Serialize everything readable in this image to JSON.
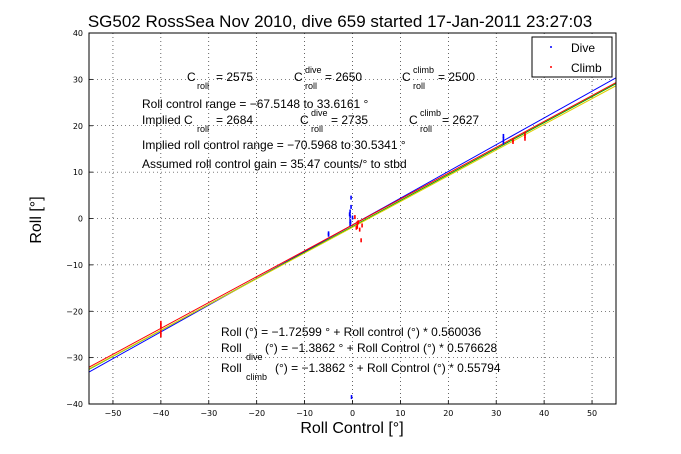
{
  "chart_data": {
    "type": "scatter",
    "title": "SG502 RossSea Nov 2010, dive 659 started 17-Jan-2011 23:27:03",
    "xlabel": "Roll Control [°]",
    "ylabel": "Roll [°]",
    "xlim": [
      -55,
      55
    ],
    "ylim": [
      -40,
      40
    ],
    "xticks": [
      "−50",
      "−40",
      "−30",
      "−20",
      "−10",
      "0",
      "10",
      "20",
      "30",
      "40",
      "50"
    ],
    "xtick_values": [
      -50,
      -40,
      -30,
      -20,
      -10,
      0,
      10,
      20,
      30,
      40,
      50
    ],
    "yticks": [
      "40",
      "30",
      "20",
      "10",
      "0",
      "−10",
      "−20",
      "−30",
      "−40"
    ],
    "ytick_values": [
      40,
      30,
      20,
      10,
      0,
      -10,
      -20,
      -30,
      -40
    ],
    "grid": true,
    "legend": {
      "placement": "top-right",
      "entries": [
        {
          "label": "Dive",
          "color": "#0000ff"
        },
        {
          "label": "Climb",
          "color": "#ff0000"
        }
      ]
    },
    "series": [
      {
        "name": "Dive",
        "color": "#0000ff",
        "points": [
          [
            31.5,
            17.2
          ],
          [
            31.5,
            16.4
          ],
          [
            31.5,
            17.8
          ],
          [
            -5,
            -3.5
          ],
          [
            -5,
            -3.2
          ],
          [
            -0.5,
            0.5
          ],
          [
            -0.5,
            -0.5
          ],
          [
            -0.5,
            1.5
          ],
          [
            -0.5,
            -1.2
          ],
          [
            -0.3,
            4.5
          ],
          [
            -0.3,
            2.5
          ],
          [
            0,
            0.2
          ],
          [
            -0.4,
            -0.8
          ],
          [
            -0.2,
            -38.5
          ],
          [
            -0.6,
            0.9
          ]
        ]
      },
      {
        "name": "Climb",
        "color": "#ff0000",
        "points": [
          [
            -40,
            -22.5
          ],
          [
            -40,
            -23.5
          ],
          [
            -40,
            -24.5
          ],
          [
            -40,
            -25.2
          ],
          [
            -40,
            -23
          ],
          [
            36,
            17.2
          ],
          [
            36,
            18.2
          ],
          [
            36,
            17.8
          ],
          [
            33.5,
            16.5
          ],
          [
            33.5,
            16.9
          ],
          [
            1,
            -1
          ],
          [
            1,
            -1.8
          ],
          [
            1.5,
            -2.4
          ],
          [
            1.8,
            -4.7
          ],
          [
            0.5,
            0.3
          ],
          [
            1.2,
            -0.8
          ],
          [
            2,
            -1.5
          ],
          [
            0.8,
            -2
          ]
        ]
      }
    ],
    "fit_lines": [
      {
        "color": "#0000ff",
        "intercept": -1.3862,
        "slope": 0.576628
      },
      {
        "color": "#ff0000",
        "intercept": -1.3862,
        "slope": 0.55794
      },
      {
        "color": "#00a000",
        "intercept": -1.72599,
        "slope": 0.560036
      },
      {
        "color": "#e0d000",
        "intercept": -1.9,
        "slope": 0.555
      }
    ],
    "annotations": {
      "c_roll": {
        "c1": "C",
        "c1_sub": "roll",
        "c1_val": " = 2575",
        "c2": "C",
        "c2_sup": "dive",
        "c2_sub": "roll",
        "c2_val": " = 2650",
        "c3": "C",
        "c3_sup": "climb",
        "c3_sub": "roll",
        "c3_val": " = 2500"
      },
      "range_line": "Roll control range = −67.5148 to 33.6161 °",
      "implied": {
        "i1": "Implied C",
        "i1_sub": "roll",
        "i1_val": " = 2684",
        "i2": "C",
        "i2_sup": "dive",
        "i2_sub": "roll",
        "i2_val": " = 2735",
        "i3": "C",
        "i3_sup": "climb",
        "i3_sub": "roll",
        "i3_val": " = 2627"
      },
      "implied_range": "Implied roll control range = −70.5968 to 30.5341 °",
      "gain": "Assumed roll control gain = 35.47 counts/° to stbd",
      "fit1": "Roll (°) = −1.72599 ° + Roll control (°) * 0.560036",
      "fit2_pre": "Roll",
      "fit2_sub": "dive",
      "fit2_post": " (°) = −1.3862 ° + Roll Control (°) * 0.576628",
      "fit3_pre": "Roll",
      "fit3_sub": "climb",
      "fit3_post": " (°) = −1.3862 ° + Roll Control (°) * 0.55794"
    }
  }
}
